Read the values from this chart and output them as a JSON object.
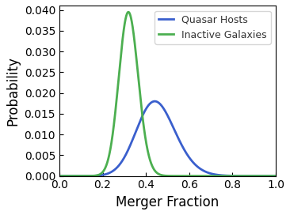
{
  "title": "",
  "xlabel": "Merger Fraction",
  "ylabel": "Probability",
  "xlim": [
    0.0,
    1.0
  ],
  "ylim": [
    0.0,
    0.041
  ],
  "yticks": [
    0.0,
    0.005,
    0.01,
    0.015,
    0.02,
    0.025,
    0.03,
    0.035,
    0.04
  ],
  "xticks": [
    0.0,
    0.2,
    0.4,
    0.6,
    0.8,
    1.0
  ],
  "quasar_mean": 0.38,
  "quasar_std": 0.115,
  "quasar_skew": 1.2,
  "quasar_peak": 0.018,
  "inactive_mean": 0.295,
  "inactive_std": 0.052,
  "inactive_skew": 0.8,
  "inactive_peak": 0.0395,
  "quasar_color": "#3a5fcd",
  "inactive_color": "#4caf50",
  "legend_labels": [
    "Quasar Hosts",
    "Inactive Galaxies"
  ],
  "line_width": 2.0,
  "figsize": [
    3.66,
    2.72
  ],
  "dpi": 100,
  "xlabel_fontsize": 12,
  "ylabel_fontsize": 12,
  "tick_labelsize": 10,
  "legend_fontsize": 9
}
